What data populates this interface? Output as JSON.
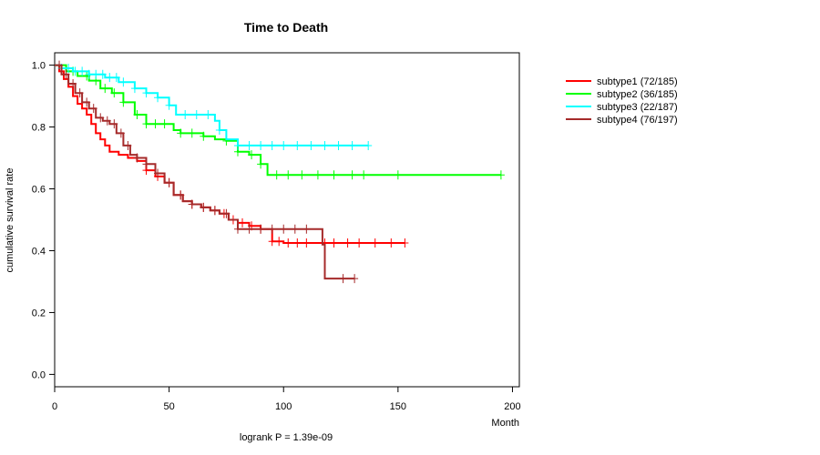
{
  "chart_data": {
    "type": "line",
    "title": "Time to Death",
    "xlabel": "Month",
    "ylabel": "cumulative survival rate",
    "footnote": "logrank P = 1.39e-09",
    "xlim": [
      0,
      203
    ],
    "ylim": [
      -0.04,
      1.04
    ],
    "xticks": [
      0,
      50,
      100,
      150,
      200
    ],
    "yticks": [
      0.0,
      0.2,
      0.4,
      0.6,
      0.8,
      1.0
    ],
    "ytick_labels": [
      "0.0",
      "0.2",
      "0.4",
      "0.6",
      "0.8",
      "1.0"
    ],
    "legend_position": "top-right",
    "series": [
      {
        "name": "subtype1 (72/185)",
        "color": "#ff0000",
        "x": [
          0,
          2,
          4,
          6,
          8,
          10,
          12,
          14,
          16,
          18,
          20,
          22,
          24,
          28,
          32,
          36,
          40,
          44,
          48,
          52,
          56,
          60,
          64,
          68,
          72,
          76,
          80,
          85,
          90,
          95,
          100,
          110,
          120,
          130,
          140,
          153
        ],
        "y": [
          1.0,
          0.98,
          0.955,
          0.93,
          0.9,
          0.875,
          0.86,
          0.84,
          0.81,
          0.78,
          0.76,
          0.74,
          0.72,
          0.71,
          0.7,
          0.69,
          0.66,
          0.64,
          0.62,
          0.58,
          0.56,
          0.55,
          0.54,
          0.53,
          0.52,
          0.5,
          0.49,
          0.48,
          0.47,
          0.43,
          0.425,
          0.425,
          0.425,
          0.425,
          0.425,
          0.425
        ],
        "censor_x": [
          40,
          45,
          50,
          55,
          60,
          65,
          70,
          74,
          78,
          82,
          86,
          90,
          95,
          98,
          102,
          106,
          110,
          118,
          122,
          128,
          133,
          140,
          147,
          153
        ]
      },
      {
        "name": "subtype2 (36/185)",
        "color": "#00ff00",
        "x": [
          0,
          5,
          10,
          15,
          20,
          25,
          30,
          35,
          40,
          45,
          50,
          52,
          55,
          60,
          65,
          70,
          75,
          80,
          85,
          90,
          93,
          100,
          120,
          150,
          195
        ],
        "y": [
          1.0,
          0.98,
          0.965,
          0.95,
          0.925,
          0.91,
          0.88,
          0.84,
          0.81,
          0.81,
          0.81,
          0.79,
          0.78,
          0.78,
          0.77,
          0.76,
          0.755,
          0.72,
          0.71,
          0.68,
          0.645,
          0.645,
          0.645,
          0.645,
          0.645
        ],
        "censor_x": [
          8,
          14,
          18,
          22,
          26,
          30,
          36,
          40,
          44,
          48,
          55,
          60,
          65,
          75,
          80,
          86,
          90,
          97,
          102,
          108,
          115,
          122,
          130,
          135,
          150,
          195
        ]
      },
      {
        "name": "subtype3 (22/187)",
        "color": "#00ffff",
        "x": [
          0,
          3,
          8,
          15,
          22,
          28,
          35,
          40,
          45,
          50,
          53,
          58,
          65,
          70,
          72,
          75,
          80,
          90,
          100,
          137
        ],
        "y": [
          1.0,
          0.99,
          0.98,
          0.97,
          0.96,
          0.945,
          0.925,
          0.91,
          0.895,
          0.87,
          0.84,
          0.84,
          0.84,
          0.82,
          0.79,
          0.76,
          0.74,
          0.74,
          0.74,
          0.74
        ],
        "censor_x": [
          3,
          6,
          9,
          12,
          15,
          18,
          21,
          24,
          27,
          30,
          35,
          40,
          45,
          50,
          57,
          62,
          67,
          72,
          80,
          85,
          90,
          95,
          100,
          106,
          112,
          118,
          124,
          130,
          137
        ]
      },
      {
        "name": "subtype4 (76/197)",
        "color": "#a52a2a",
        "x": [
          0,
          3,
          6,
          9,
          12,
          15,
          18,
          21,
          24,
          27,
          30,
          33,
          36,
          40,
          44,
          48,
          52,
          56,
          60,
          64,
          68,
          72,
          76,
          80,
          85,
          90,
          100,
          110,
          117,
          118,
          125,
          131
        ],
        "y": [
          1.0,
          0.97,
          0.94,
          0.91,
          0.88,
          0.86,
          0.83,
          0.82,
          0.81,
          0.78,
          0.74,
          0.71,
          0.7,
          0.68,
          0.65,
          0.62,
          0.58,
          0.56,
          0.55,
          0.54,
          0.53,
          0.52,
          0.5,
          0.47,
          0.47,
          0.47,
          0.47,
          0.47,
          0.42,
          0.31,
          0.31,
          0.31
        ],
        "censor_x": [
          2,
          5,
          8,
          11,
          14,
          17,
          20,
          23,
          26,
          29,
          32,
          36,
          40,
          45,
          50,
          55,
          60,
          65,
          70,
          75,
          80,
          85,
          90,
          95,
          100,
          105,
          110,
          126,
          131
        ]
      }
    ]
  }
}
